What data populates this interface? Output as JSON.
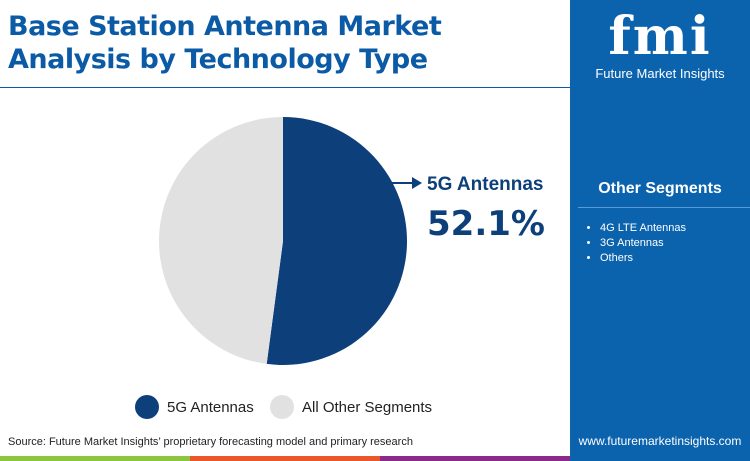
{
  "title": "Base Station Antenna Market Analysis by Technology Type",
  "logo": {
    "mark": "fmi",
    "name": "Future Market Insights"
  },
  "other_segments": {
    "title": "Other Segments",
    "items": [
      "4G LTE Antennas",
      "3G Antennas",
      "Others"
    ]
  },
  "website": "www.futuremarketinsights.com",
  "source": "Source: Future Market Insights’ proprietary forecasting model and primary research",
  "colors": {
    "primary": "#0d3f7a",
    "other": "#e1e1e1",
    "panel": "#0b62ad",
    "stripes": [
      "#8cc63f",
      "#e8582a",
      "#8b2a8a"
    ]
  },
  "chart_data": {
    "type": "pie",
    "slices": [
      {
        "label": "5G Antennas",
        "value": 52.1,
        "color": "#0d3f7a"
      },
      {
        "label": "All Other Segments",
        "value": 47.9,
        "color": "#e1e1e1"
      }
    ],
    "callout": {
      "label": "5G Antennas",
      "value": "52.1%"
    },
    "legend": [
      "5G Antennas",
      "All Other Segments"
    ],
    "legend_position": "bottom"
  }
}
